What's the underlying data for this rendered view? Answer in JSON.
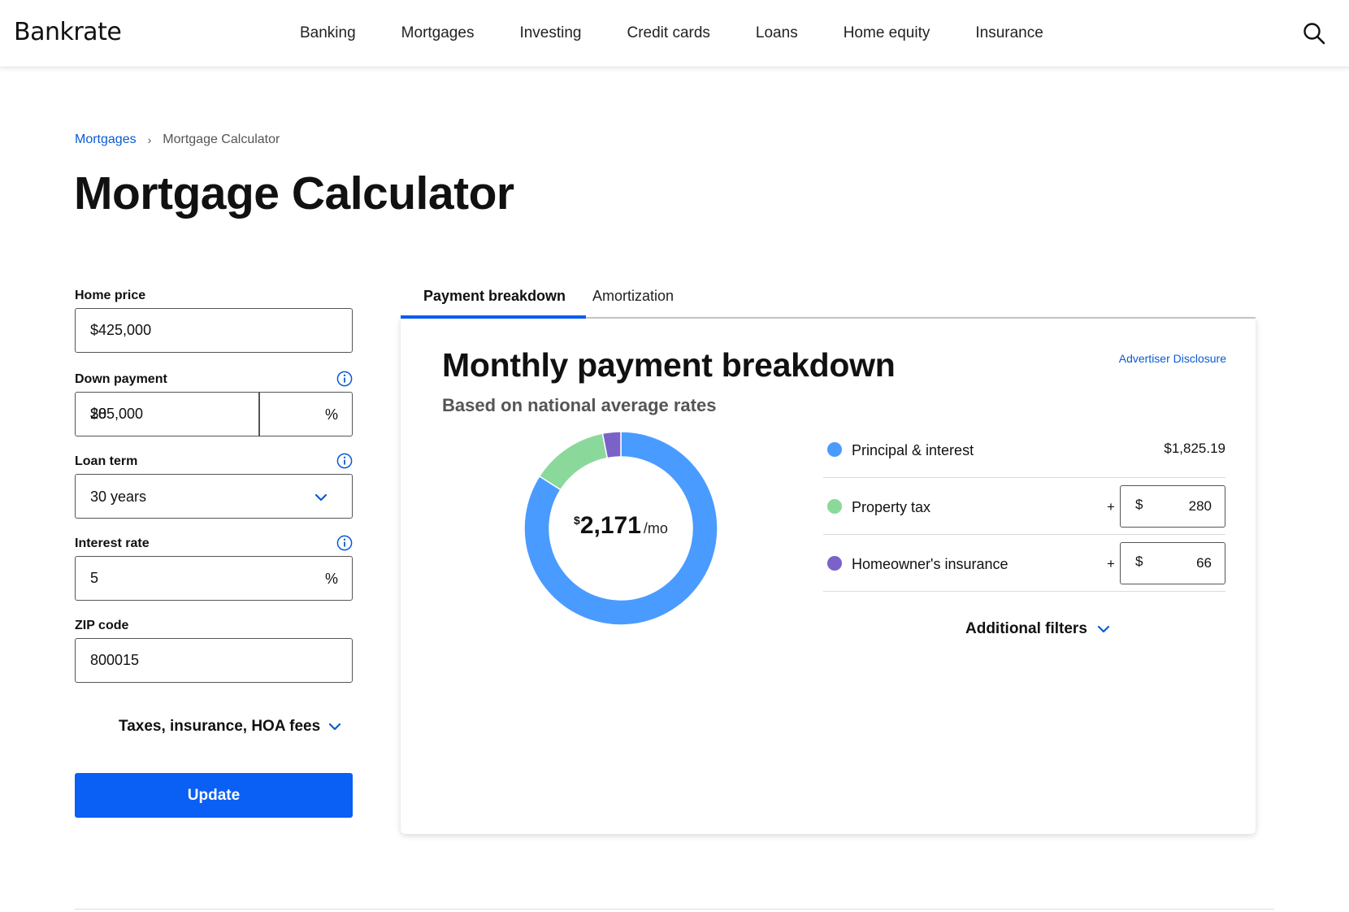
{
  "brand": {
    "logo": "Bankrate",
    "accent": "#0a5ff5",
    "link": "#0a5ad4"
  },
  "nav": {
    "items": [
      "Banking",
      "Mortgages",
      "Investing",
      "Credit cards",
      "Loans",
      "Home equity",
      "Insurance"
    ],
    "search_icon": "search-icon"
  },
  "breadcrumb": {
    "parent": "Mortgages",
    "separator": "›",
    "current": "Mortgage Calculator"
  },
  "page": {
    "title": "Mortgage Calculator"
  },
  "form": {
    "home_price": {
      "label": "Home price",
      "value": "$425,000"
    },
    "down_payment": {
      "label": "Down payment",
      "value": "$85,000",
      "percent": "20",
      "percent_suffix": "%"
    },
    "loan_term": {
      "label": "Loan term",
      "value": "30 years"
    },
    "interest_rate": {
      "label": "Interest rate",
      "value": "5",
      "suffix": "%"
    },
    "zip_code": {
      "label": "ZIP code",
      "value": "800015"
    },
    "expander": "Taxes, insurance, HOA fees",
    "update_label": "Update"
  },
  "tabs": {
    "active": "Payment breakdown",
    "inactive": "Amortization"
  },
  "breakdown": {
    "title": "Monthly payment breakdown",
    "subtitle": "Based on national average rates",
    "disclosure": "Advertiser Disclosure",
    "total": {
      "currency": "$",
      "amount": "2,171",
      "unit": "/mo"
    },
    "items": [
      {
        "label": "Principal & interest",
        "value": "$1,825.19",
        "amount": 1825.19,
        "color": "#4a9bff"
      },
      {
        "label": "Property tax",
        "plus": "+",
        "currency": "$",
        "value": "280",
        "amount": 280,
        "color": "#8ad99b"
      },
      {
        "label": "Homeowner's insurance",
        "plus": "+",
        "currency": "$",
        "value": "66",
        "amount": 66,
        "color": "#7b62c9"
      }
    ],
    "filters": "Additional filters"
  }
}
